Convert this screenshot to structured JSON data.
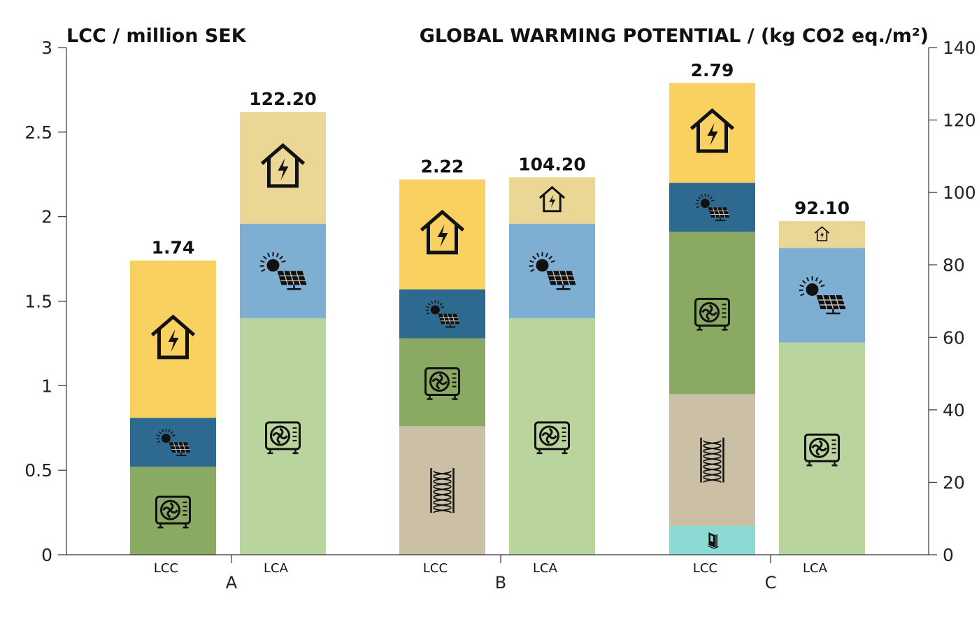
{
  "chart_data": {
    "type": "bar",
    "stacked": true,
    "left_axis": {
      "title": "LCC / million SEK",
      "ylim": [
        0,
        3
      ],
      "ticks": [
        "0",
        "0.5",
        "1",
        "1.5",
        "2",
        "2.5",
        "3"
      ]
    },
    "right_axis": {
      "title": "GLOBAL WARMING POTENTIAL / (kg CO2 eq./m²)",
      "ylim": [
        0,
        140
      ],
      "ticks": [
        "0",
        "20",
        "40",
        "60",
        "80",
        "100",
        "120",
        "140"
      ]
    },
    "groups": [
      "A",
      "B",
      "C"
    ],
    "grid": false,
    "icons": {
      "heat-pump": "heat-pump-icon",
      "insulation": "insulation-icon",
      "window": "window-icon",
      "pv": "solar-panel-icon",
      "electricity": "house-electricity-icon"
    },
    "bars": [
      {
        "group": "A",
        "label": "LCC",
        "axis": "left",
        "total_label": "1.74",
        "segments": [
          {
            "component": "heat-pump",
            "value": 0.52,
            "color": "#8aa963"
          },
          {
            "component": "pv",
            "value": 0.29,
            "color": "#2e6a90"
          },
          {
            "component": "electricity",
            "value": 0.93,
            "color": "#f8d160"
          }
        ]
      },
      {
        "group": "A",
        "label": "LCA",
        "axis": "right",
        "total_label": "122.20",
        "segments": [
          {
            "component": "heat-pump",
            "value": 65.3,
            "color": "#bad49d"
          },
          {
            "component": "pv",
            "value": 26.1,
            "color": "#7faed3"
          },
          {
            "component": "electricity",
            "value": 30.8,
            "color": "#ead796"
          }
        ]
      },
      {
        "group": "B",
        "label": "LCC",
        "axis": "left",
        "total_label": "2.22",
        "segments": [
          {
            "component": "insulation",
            "value": 0.76,
            "color": "#cbbfa6"
          },
          {
            "component": "heat-pump",
            "value": 0.52,
            "color": "#8aa963"
          },
          {
            "component": "pv",
            "value": 0.29,
            "color": "#2e6a90"
          },
          {
            "component": "electricity",
            "value": 0.65,
            "color": "#f8d160"
          }
        ]
      },
      {
        "group": "B",
        "label": "LCA",
        "axis": "right",
        "total_label": "104.20",
        "segments": [
          {
            "component": "heat-pump",
            "value": 65.3,
            "color": "#bad49d"
          },
          {
            "component": "pv",
            "value": 26.1,
            "color": "#7faed3"
          },
          {
            "component": "electricity",
            "value": 12.8,
            "color": "#ead796"
          }
        ]
      },
      {
        "group": "C",
        "label": "LCC",
        "axis": "left",
        "total_label": "2.79",
        "segments": [
          {
            "component": "window",
            "value": 0.17,
            "color": "#8bdad3"
          },
          {
            "component": "insulation",
            "value": 0.78,
            "color": "#cbbfa6"
          },
          {
            "component": "heat-pump",
            "value": 0.96,
            "color": "#8aa963"
          },
          {
            "component": "pv",
            "value": 0.29,
            "color": "#2e6a90"
          },
          {
            "component": "electricity",
            "value": 0.59,
            "color": "#f8d160"
          }
        ]
      },
      {
        "group": "C",
        "label": "LCA",
        "axis": "right",
        "total_label": "92.10",
        "segments": [
          {
            "component": "heat-pump",
            "value": 58.6,
            "color": "#bad49d"
          },
          {
            "component": "pv",
            "value": 26.1,
            "color": "#7faed3"
          },
          {
            "component": "electricity",
            "value": 7.4,
            "color": "#ead796"
          }
        ]
      }
    ]
  }
}
